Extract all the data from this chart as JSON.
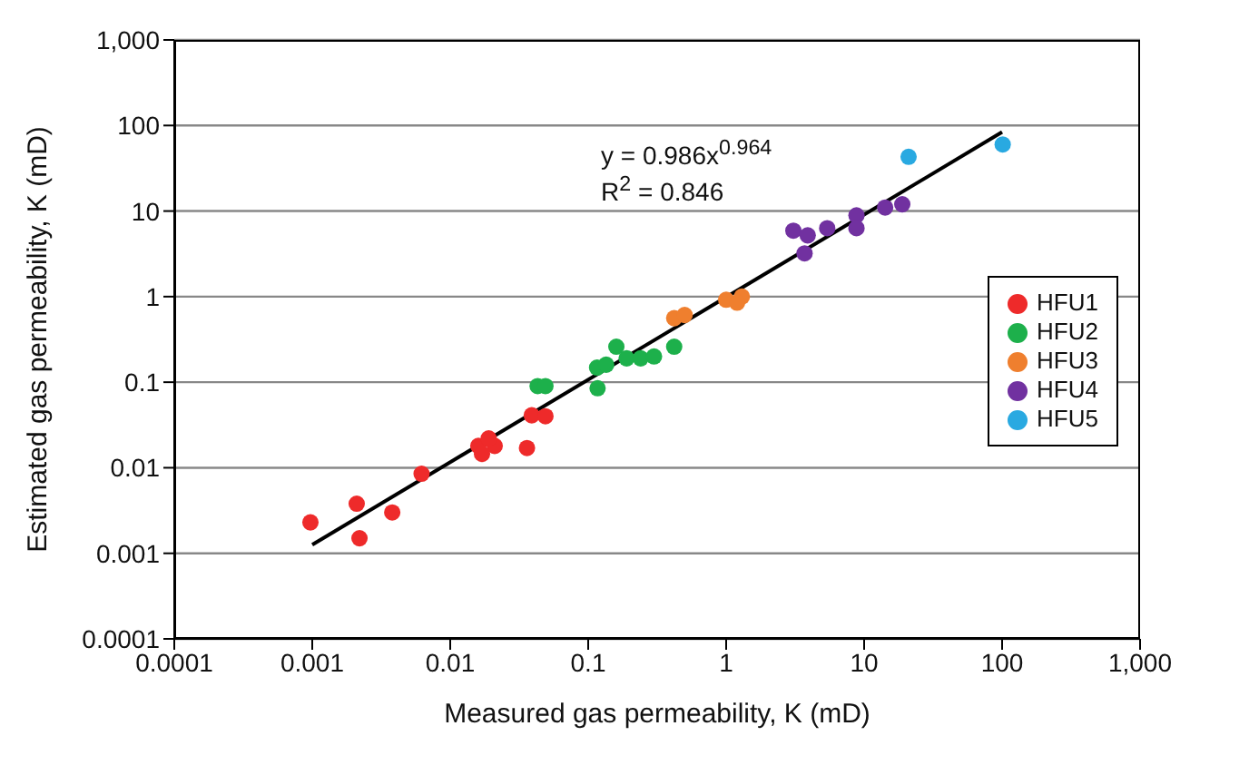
{
  "chart_data": {
    "type": "scatter",
    "xlabel": "Measured gas permeability, K (mD)",
    "ylabel": "Estimated gas permeability, K (mD)",
    "log": "xy",
    "grid": "y",
    "legend": "right",
    "marker": "circle",
    "xlim": [
      0.0001,
      1000
    ],
    "ylim": [
      0.0001,
      1000
    ],
    "xticks": [
      0.0001,
      0.001,
      0.01,
      0.1,
      1,
      10,
      100,
      {
        "value": 1000,
        "label": "1,000"
      }
    ],
    "yticks": [
      0.0001,
      0.001,
      0.01,
      0.1,
      1,
      10,
      100,
      {
        "value": 1000,
        "label": "1,000"
      }
    ],
    "annotations": [
      "y = 0.986x$^{0.964}$",
      "R$^{2}$ = 0.846"
    ],
    "series": [
      {
        "name": "HFU1",
        "color": "#ee2a2a",
        "x": [
          0.00097,
          0.0021,
          0.0022,
          0.0038,
          0.0062,
          0.016,
          0.021,
          0.019,
          0.017,
          0.036,
          0.039,
          0.049
        ],
        "values": [
          0.0023,
          0.0038,
          0.0015,
          0.003,
          0.0085,
          0.018,
          0.018,
          0.022,
          0.0145,
          0.017,
          0.041,
          0.04
        ]
      },
      {
        "name": "HFU2",
        "color": "#1db04b",
        "x": [
          0.043,
          0.049,
          0.117,
          0.116,
          0.135,
          0.16,
          0.19,
          0.24,
          0.3,
          0.42
        ],
        "values": [
          0.09,
          0.09,
          0.085,
          0.148,
          0.16,
          0.26,
          0.19,
          0.19,
          0.2,
          0.26
        ]
      },
      {
        "name": "HFU3",
        "color": "#ef7f2e",
        "x": [
          0.42,
          0.5,
          1.0,
          1.3,
          1.2
        ],
        "values": [
          0.56,
          0.61,
          0.92,
          1.0,
          0.85
        ]
      },
      {
        "name": "HFU4",
        "color": "#7131a0",
        "x": [
          3.07,
          3.9,
          3.7,
          5.4,
          8.8,
          8.8,
          14.2,
          18.9
        ],
        "values": [
          5.9,
          5.2,
          3.2,
          6.3,
          8.9,
          6.3,
          11,
          12
        ]
      },
      {
        "name": "HFU5",
        "color": "#29a9e1",
        "x": [
          21,
          101
        ],
        "values": [
          43,
          60
        ]
      },
      {
        "type": "line",
        "color": "#000000",
        "marker": "none",
        "x": [
          0.001,
          100
        ],
        "values": [
          0.00126,
          83.7
        ]
      }
    ]
  }
}
